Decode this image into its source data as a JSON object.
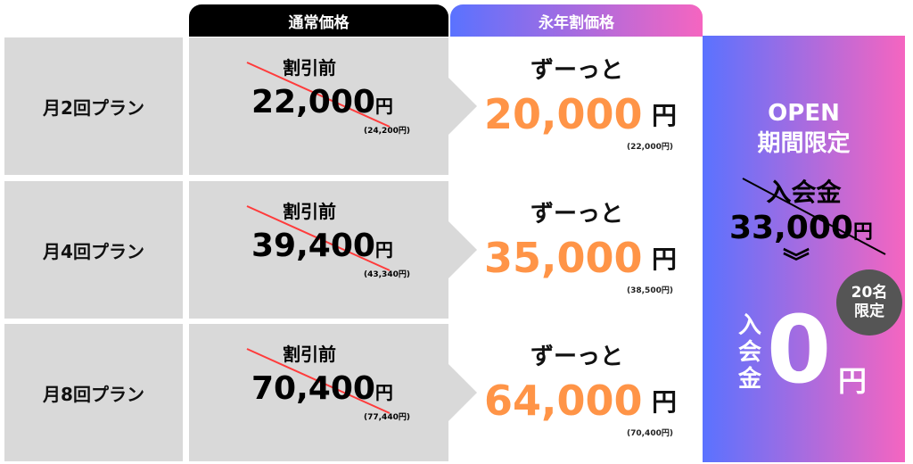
{
  "headers": {
    "regular": "通常価格",
    "discount": "永年割価格"
  },
  "rows": [
    {
      "plan": "月2回プラン",
      "before_label": "割引前",
      "regular_price": "22,000",
      "regular_tax": "(24,200円)",
      "discount_label": "ずーっと",
      "discount_price": "20,000",
      "discount_tax": "(22,000円)"
    },
    {
      "plan": "月4回プラン",
      "before_label": "割引前",
      "regular_price": "39,400",
      "regular_tax": "(43,340円)",
      "discount_label": "ずーっと",
      "discount_price": "35,000",
      "discount_tax": "(38,500円)"
    },
    {
      "plan": "月8回プラン",
      "before_label": "割引前",
      "regular_price": "70,400",
      "regular_tax": "(77,440円)",
      "discount_label": "ずーっと",
      "discount_price": "64,000",
      "discount_tax": "(70,400円)"
    }
  ],
  "yen": "円",
  "panel": {
    "open": "OPEN",
    "period": "期間限定",
    "fee_label": "入会金",
    "fee_old": "33,000",
    "chevron": "︾",
    "badge_line1": "20名",
    "badge_line2": "限定",
    "fee_new_label": "入会金",
    "fee_new": "0"
  },
  "colors": {
    "price": "#ff9447",
    "gradient_start": "#5a72ff",
    "gradient_end": "#f565c0",
    "strike": "#ff3b3b"
  }
}
